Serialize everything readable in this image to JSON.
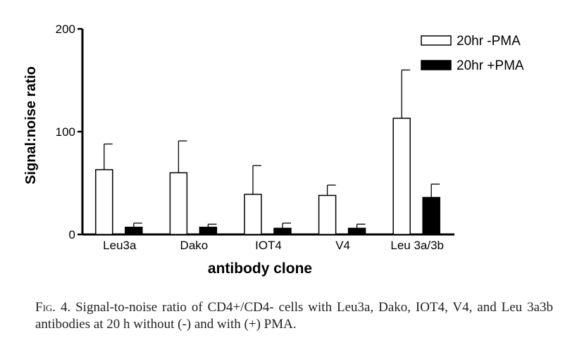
{
  "chart_data": {
    "type": "bar",
    "xlabel": "antibody clone",
    "ylabel": "Signal:noise ratio",
    "ylim": [
      0,
      200
    ],
    "yticks": [
      "0",
      "100",
      "200"
    ],
    "categories": [
      "Leu3a",
      "Dako",
      "IOT4",
      "V4",
      "Leu 3a/3b"
    ],
    "series": [
      {
        "name": "20hr -PMA",
        "color": "#ffffff",
        "values": [
          63,
          60,
          39,
          38,
          113
        ],
        "error": [
          25,
          31,
          28,
          10,
          47
        ]
      },
      {
        "name": "20hr +PMA",
        "color": "#000000",
        "values": [
          7,
          7,
          6,
          6,
          36
        ],
        "error": [
          4,
          3,
          5,
          4,
          13
        ]
      }
    ],
    "legend_position": "top-right",
    "grid": false
  },
  "caption": {
    "fig_label": "Fig. 4.",
    "text": "Signal-to-noise ratio of CD4+/CD4- cells with Leu3a, Dako, IOT4, V4, and Leu 3a3b antibodies at 20 h without (-) and with (+) PMA."
  }
}
